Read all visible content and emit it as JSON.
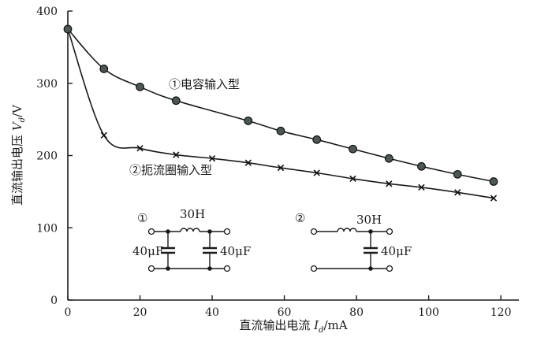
{
  "chart_data": {
    "type": "line",
    "xlabel": "直流输出电流I_d/mA",
    "ylabel": "直流输出电压V_d/V",
    "xlim": [
      0,
      125
    ],
    "ylim": [
      0,
      400
    ],
    "x_ticks": [
      "0",
      "20",
      "40",
      "60",
      "80",
      "100",
      "120"
    ],
    "y_ticks": [
      "0",
      "100",
      "200",
      "300",
      "400"
    ],
    "grid": false,
    "series": [
      {
        "name": "①电容输入型",
        "marker": "filled-circle",
        "points": [
          [
            0,
            375
          ],
          [
            10,
            320
          ],
          [
            20,
            295
          ],
          [
            30,
            276
          ],
          [
            50,
            248
          ],
          [
            59,
            234
          ],
          [
            69,
            222
          ],
          [
            79,
            209
          ],
          [
            89,
            196
          ],
          [
            98,
            185
          ],
          [
            108,
            174
          ],
          [
            118,
            164
          ]
        ]
      },
      {
        "name": "②扼流圈输入型",
        "marker": "x",
        "points": [
          [
            0,
            375
          ],
          [
            10,
            228
          ],
          [
            20,
            210
          ],
          [
            30,
            201
          ],
          [
            40,
            196
          ],
          [
            50,
            190
          ],
          [
            59,
            183
          ],
          [
            69,
            176
          ],
          [
            79,
            168
          ],
          [
            89,
            161
          ],
          [
            98,
            156
          ],
          [
            108,
            149
          ],
          [
            118,
            141
          ]
        ]
      }
    ],
    "inset_circuits": [
      {
        "number": "①",
        "inductor": "30H",
        "capacitors": [
          "40μF",
          "40μF"
        ]
      },
      {
        "number": "②",
        "inductor": "30H",
        "capacitors": [
          "40μF"
        ]
      }
    ]
  }
}
